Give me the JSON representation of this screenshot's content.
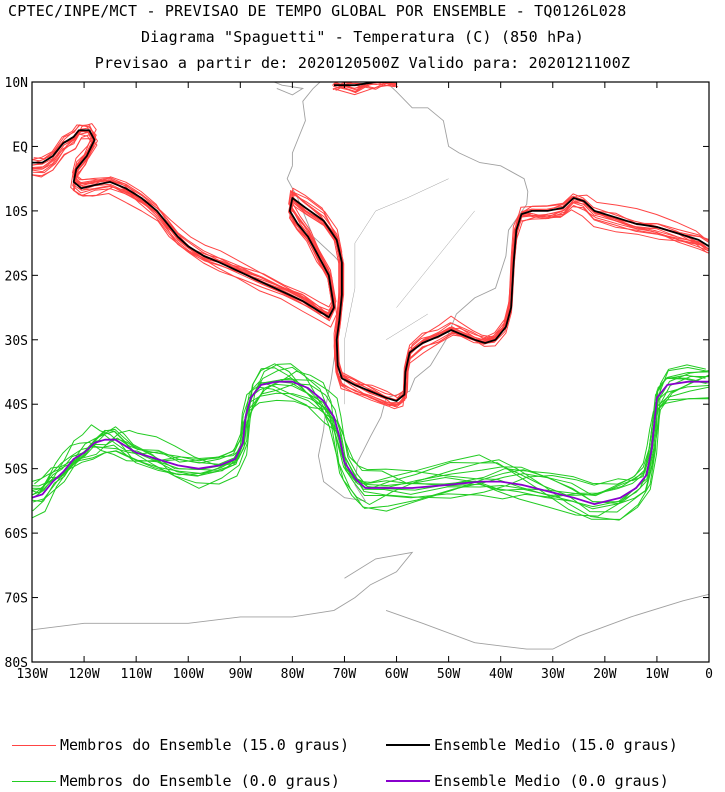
{
  "chart_data": {
    "type": "line",
    "title": "CPTEC/INPE/MCT - PREVISAO DE TEMPO GLOBAL POR ENSEMBLE - TQ0126L028",
    "subtitle": "Diagrama \"Spaguetti\" - Temperatura (C) (850 hPa)",
    "subtitle2": "Previsao a partir de: 2020120500Z  Valido para: 2020121100Z",
    "xlabel": "",
    "ylabel": "",
    "xlim": [
      -130,
      0
    ],
    "ylim": [
      -80,
      10
    ],
    "xticks": [
      -130,
      -120,
      -110,
      -100,
      -90,
      -80,
      -70,
      -60,
      -50,
      -40,
      -30,
      -20,
      -10,
      0
    ],
    "xtick_labels": [
      "130W",
      "120W",
      "110W",
      "100W",
      "90W",
      "80W",
      "70W",
      "60W",
      "50W",
      "40W",
      "30W",
      "20W",
      "10W",
      "0"
    ],
    "yticks": [
      10,
      0,
      -10,
      -20,
      -30,
      -40,
      -50,
      -60,
      -70,
      -80
    ],
    "ytick_labels": [
      "10N",
      "EQ",
      "10S",
      "20S",
      "30S",
      "40S",
      "50S",
      "60S",
      "70S",
      "80S"
    ],
    "colors": {
      "member_15": "#ff4444",
      "mean_15": "#000000",
      "member_0": "#22cc22",
      "mean_0": "#8800cc",
      "coast": "#a0a0a0"
    },
    "legend": [
      {
        "label": "Membros do Ensemble (15.0 graus)",
        "color": "#ff4444"
      },
      {
        "label": "Ensemble Medio (15.0 graus)",
        "color": "#000000"
      },
      {
        "label": "Membros do Ensemble (0.0 graus)",
        "color": "#22cc22"
      },
      {
        "label": "Ensemble Medio (0.0 graus)",
        "color": "#8800cc"
      }
    ],
    "series": [
      {
        "name": "Ensemble Medio (15.0 graus)",
        "segments": [
          [
            [
              -130,
              -2.5
            ],
            [
              -128,
              -2.5
            ],
            [
              -126,
              -1.5
            ],
            [
              -124,
              0.5
            ],
            [
              -122,
              1.5
            ],
            [
              -121,
              2.5
            ],
            [
              -119,
              2.5
            ],
            [
              -118,
              1
            ],
            [
              -119.5,
              -1.5
            ],
            [
              -121.5,
              -3.5
            ],
            [
              -122,
              -5.5
            ],
            [
              -120.5,
              -6.5
            ],
            [
              -118,
              -6
            ],
            [
              -115,
              -5.5
            ],
            [
              -112,
              -6.5
            ],
            [
              -109,
              -8
            ],
            [
              -106,
              -10
            ],
            [
              -104,
              -12
            ],
            [
              -102,
              -14
            ],
            [
              -100,
              -15.5
            ],
            [
              -97,
              -17
            ],
            [
              -94,
              -18
            ],
            [
              -90,
              -19.5
            ],
            [
              -86,
              -21
            ],
            [
              -82,
              -22.5
            ],
            [
              -78,
              -24
            ],
            [
              -75,
              -25.5
            ],
            [
              -73,
              -26.5
            ],
            [
              -72,
              -25
            ],
            [
              -73,
              -20
            ],
            [
              -75,
              -17
            ],
            [
              -77,
              -14
            ],
            [
              -79,
              -12
            ],
            [
              -80.5,
              -10
            ],
            [
              -80,
              -8
            ],
            [
              -77.5,
              -9.5
            ],
            [
              -74,
              -11.5
            ],
            [
              -71.5,
              -14.5
            ],
            [
              -70.5,
              -18
            ],
            [
              -70.5,
              -23
            ],
            [
              -71,
              -27
            ],
            [
              -71.5,
              -30
            ],
            [
              -71.3,
              -34
            ],
            [
              -70.5,
              -36
            ],
            [
              -68,
              -37
            ],
            [
              -65,
              -38
            ],
            [
              -62,
              -39
            ],
            [
              -60,
              -39.5
            ],
            [
              -58.5,
              -38.5
            ],
            [
              -58.3,
              -35
            ],
            [
              -57.5,
              -32
            ],
            [
              -55,
              -30.5
            ],
            [
              -52,
              -29.5
            ],
            [
              -49.5,
              -28.5
            ],
            [
              -48,
              -29
            ],
            [
              -45,
              -30
            ],
            [
              -43,
              -30.5
            ],
            [
              -41,
              -30
            ],
            [
              -39,
              -28
            ],
            [
              -38,
              -25
            ],
            [
              -37.5,
              -18
            ],
            [
              -37,
              -13
            ],
            [
              -36,
              -10.5
            ],
            [
              -34,
              -10
            ],
            [
              -31,
              -10
            ],
            [
              -28,
              -9.5
            ],
            [
              -26,
              -8
            ],
            [
              -24,
              -8.5
            ],
            [
              -22,
              -10
            ],
            [
              -18,
              -11
            ],
            [
              -14,
              -12
            ],
            [
              -10,
              -12.5
            ],
            [
              -6,
              -13.5
            ],
            [
              -2,
              -14.5
            ],
            [
              0,
              -15.5
            ]
          ],
          [
            [
              -72,
              9.5
            ],
            [
              -68,
              9.5
            ],
            [
              -64,
              10
            ],
            [
              -60,
              10
            ]
          ]
        ]
      },
      {
        "name": "Ensemble Medio (0.0 graus)",
        "segments": [
          [
            [
              -130,
              -54.5
            ],
            [
              -128,
              -54
            ],
            [
              -126,
              -52
            ],
            [
              -124,
              -50.5
            ],
            [
              -122,
              -48.5
            ],
            [
              -120,
              -47.5
            ],
            [
              -118,
              -46
            ],
            [
              -116,
              -45.5
            ],
            [
              -114,
              -45.5
            ],
            [
              -112,
              -46.5
            ],
            [
              -110,
              -47.5
            ],
            [
              -106,
              -48.5
            ],
            [
              -102,
              -49.5
            ],
            [
              -98,
              -50
            ],
            [
              -94,
              -49.5
            ],
            [
              -91,
              -48.5
            ],
            [
              -89.5,
              -46
            ],
            [
              -89,
              -42
            ],
            [
              -88,
              -39
            ],
            [
              -86,
              -37
            ],
            [
              -83,
              -36.5
            ],
            [
              -80,
              -36.5
            ],
            [
              -77,
              -37.5
            ],
            [
              -74,
              -39.5
            ],
            [
              -72,
              -42
            ],
            [
              -71,
              -45
            ],
            [
              -70,
              -49
            ],
            [
              -68,
              -51.5
            ],
            [
              -66,
              -53
            ],
            [
              -62,
              -53
            ],
            [
              -57,
              -53
            ],
            [
              -50,
              -52.5
            ],
            [
              -44,
              -52
            ],
            [
              -40,
              -52
            ],
            [
              -36,
              -52.5
            ],
            [
              -31,
              -53.5
            ],
            [
              -26,
              -54.5
            ],
            [
              -22,
              -55.5
            ],
            [
              -17,
              -54.5
            ],
            [
              -14,
              -53
            ],
            [
              -12,
              -51
            ],
            [
              -11,
              -47
            ],
            [
              -10.5,
              -43
            ],
            [
              -10,
              -39
            ],
            [
              -8,
              -37
            ],
            [
              -4,
              -36.5
            ],
            [
              0,
              -36.5
            ]
          ]
        ]
      }
    ]
  },
  "legend_labels": {
    "member_15": "Membros do Ensemble (15.0 graus)",
    "mean_15": "Ensemble Medio (15.0 graus)",
    "member_0": "Membros do Ensemble (0.0 graus)",
    "mean_0": "Ensemble Medio (0.0 graus)"
  }
}
